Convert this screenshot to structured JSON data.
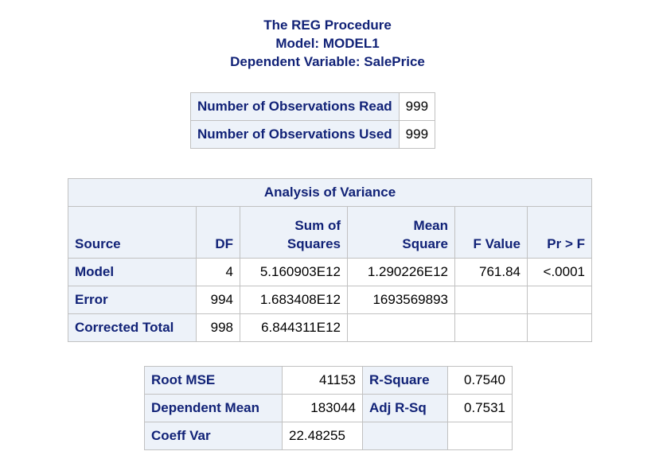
{
  "titles": {
    "line1": "The REG Procedure",
    "line2": "Model: MODEL1",
    "line3": "Dependent Variable: SalePrice"
  },
  "observations": [
    {
      "label": "Number of Observations Read",
      "value": "999"
    },
    {
      "label": "Number of Observations Used",
      "value": "999"
    }
  ],
  "anova": {
    "caption": "Analysis of Variance",
    "headers": {
      "source": "Source",
      "df": "DF",
      "ss_1": "Sum of",
      "ss_2": "Squares",
      "ms_1": "Mean",
      "ms_2": "Square",
      "f": "F Value",
      "p": "Pr > F"
    },
    "rows": [
      {
        "source": "Model",
        "df": "4",
        "ss": "5.160903E12",
        "ms": "1.290226E12",
        "f": "761.84",
        "p": "<.0001"
      },
      {
        "source": "Error",
        "df": "994",
        "ss": "1.683408E12",
        "ms": "1693569893",
        "f": "",
        "p": ""
      },
      {
        "source": "Corrected Total",
        "df": "998",
        "ss": "6.844311E12",
        "ms": "",
        "f": "",
        "p": ""
      }
    ]
  },
  "fit": [
    {
      "label1": "Root MSE",
      "value1": "41153",
      "label2": "R-Square",
      "value2": "0.7540"
    },
    {
      "label1": "Dependent Mean",
      "value1": "183044",
      "label2": "Adj R-Sq",
      "value2": "0.7531"
    },
    {
      "label1": "Coeff Var",
      "value1": "22.48255",
      "label2": "",
      "value2": ""
    }
  ]
}
